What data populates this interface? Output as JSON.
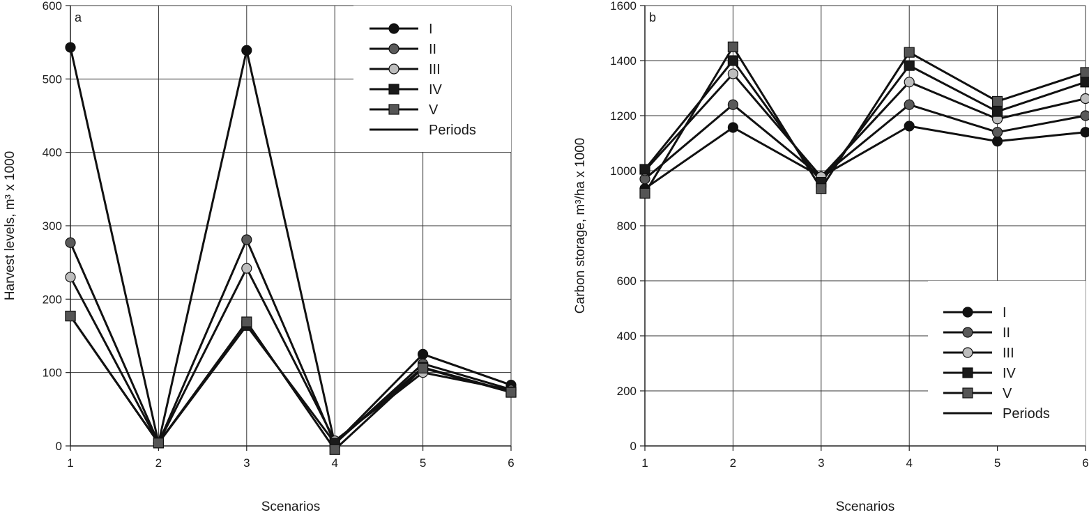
{
  "chart_data": [
    {
      "type": "line",
      "panel_label": "a",
      "xlabel": "Scenarios",
      "ylabel": "Harvest levels, m³ x 1000",
      "x": [
        1,
        2,
        3,
        4,
        5,
        6
      ],
      "xlim": [
        1,
        6
      ],
      "ylim": [
        0,
        600
      ],
      "yticks": [
        0,
        100,
        200,
        300,
        400,
        500,
        600
      ],
      "grid": true,
      "legend_position": "top-right",
      "legend_entries": [
        "I",
        "II",
        "III",
        "IV",
        "V",
        "Periods"
      ],
      "series": [
        {
          "name": "I",
          "marker": "circle",
          "marker_color": "#111111",
          "values": [
            543,
            4,
            539,
            3,
            125,
            83
          ]
        },
        {
          "name": "II",
          "marker": "circle",
          "marker_color": "#5a5a5a",
          "values": [
            277,
            4,
            281,
            3,
            112,
            77
          ]
        },
        {
          "name": "III",
          "marker": "circle",
          "marker_color": "#bdbdbd",
          "values": [
            230,
            4,
            242,
            7,
            100,
            76
          ]
        },
        {
          "name": "IV",
          "marker": "square",
          "marker_color": "#1a1a1a",
          "values": [
            177,
            4,
            164,
            4,
            107,
            74
          ]
        },
        {
          "name": "V",
          "marker": "square",
          "marker_color": "#555555",
          "values": [
            177,
            4,
            169,
            -5,
            106,
            73
          ]
        }
      ]
    },
    {
      "type": "line",
      "panel_label": "b",
      "xlabel": "Scenarios",
      "ylabel": "Carbon storage, m³/ha  x 1000",
      "x": [
        1,
        2,
        3,
        4,
        5,
        6
      ],
      "xlim": [
        1,
        6
      ],
      "ylim": [
        0,
        1600
      ],
      "yticks": [
        0,
        200,
        400,
        600,
        800,
        1000,
        1200,
        1400,
        1600
      ],
      "grid": true,
      "legend_position": "bottom-right",
      "legend_entries": [
        "I",
        "II",
        "III",
        "IV",
        "V",
        "Periods"
      ],
      "series": [
        {
          "name": "I",
          "marker": "circle",
          "marker_color": "#111111",
          "values": [
            935,
            1157,
            978,
            1162,
            1107,
            1140
          ]
        },
        {
          "name": "II",
          "marker": "circle",
          "marker_color": "#5a5a5a",
          "values": [
            970,
            1240,
            978,
            1240,
            1140,
            1200
          ]
        },
        {
          "name": "III",
          "marker": "circle",
          "marker_color": "#bdbdbd",
          "values": [
            1000,
            1352,
            978,
            1322,
            1188,
            1262
          ]
        },
        {
          "name": "IV",
          "marker": "square",
          "marker_color": "#1a1a1a",
          "values": [
            1005,
            1400,
            958,
            1382,
            1215,
            1322
          ]
        },
        {
          "name": "V",
          "marker": "square",
          "marker_color": "#555555",
          "values": [
            918,
            1450,
            935,
            1430,
            1252,
            1357
          ]
        }
      ]
    }
  ]
}
